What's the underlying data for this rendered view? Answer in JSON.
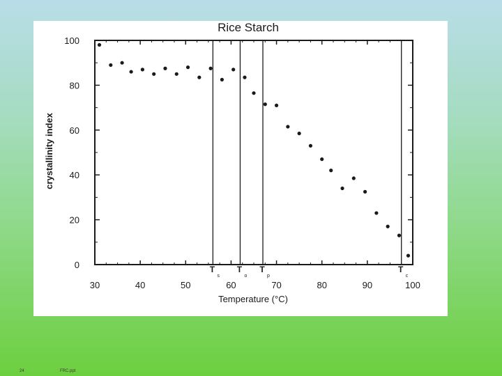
{
  "footer": {
    "slide_number": "24",
    "file_name": "FRC.ppt"
  },
  "colors": {
    "background_top": "#b9dde8",
    "background_bottom": "#6ccf3e",
    "panel": "#ffffff",
    "ink": "#1a1a1a"
  },
  "chart_data": {
    "type": "scatter",
    "title": "Rice Starch",
    "xlabel": "Temperature  (°C)",
    "ylabel": "crystallinity index",
    "xlim": [
      30,
      100
    ],
    "ylim": [
      0,
      100
    ],
    "xticks": [
      "30",
      "40",
      "50",
      "60",
      "70",
      "80",
      "90",
      "100"
    ],
    "yticks": [
      "0",
      "20",
      "40",
      "60",
      "80",
      "100"
    ],
    "grid": false,
    "series": [
      {
        "x": [
          31,
          33.5,
          36,
          38,
          40.5,
          43,
          45.5,
          48,
          50.5,
          53,
          55.5,
          58,
          60.5,
          63,
          65,
          67.5,
          70,
          72.5,
          75,
          77.5,
          80,
          82,
          84.5,
          87,
          89.5,
          92,
          94.5,
          97,
          99
        ],
        "y": [
          98,
          89,
          90,
          86,
          87,
          85,
          87.5,
          85,
          88,
          83.5,
          87.5,
          82.5,
          87,
          83.5,
          76.5,
          71.5,
          71,
          61.5,
          58.5,
          53,
          47,
          42,
          34,
          38.5,
          32.5,
          23,
          17,
          13,
          4
        ]
      }
    ],
    "vertical_markers": [
      {
        "x": 56,
        "label": "T",
        "sub": "s"
      },
      {
        "x": 62,
        "label": "T",
        "sub": "o"
      },
      {
        "x": 67,
        "label": "T",
        "sub": "p"
      },
      {
        "x": 97.5,
        "label": "T",
        "sub": "c"
      }
    ]
  }
}
